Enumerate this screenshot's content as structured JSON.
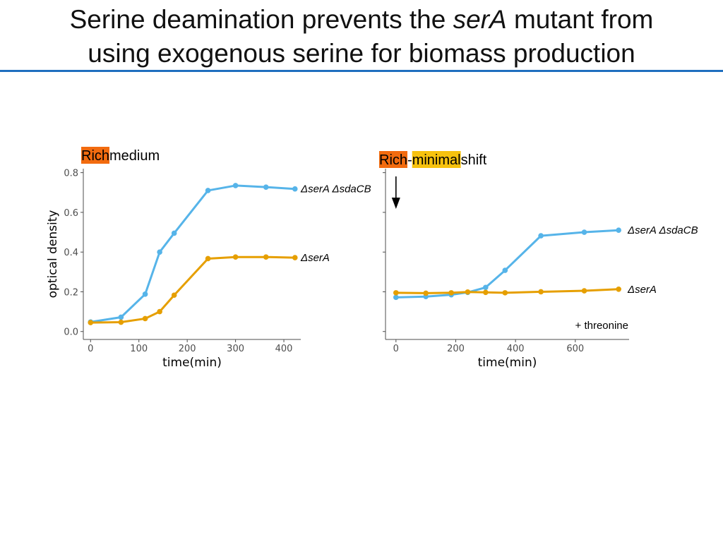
{
  "slide": {
    "title_line1_prefix": "Serine deamination prevents the ",
    "title_line1_italic": "serA",
    "title_line1_suffix": " mutant from",
    "title_line2": "using exogenous serine for biomass production",
    "rule_color": "#1f6fbf"
  },
  "highlight_colors": {
    "rich": "#f26b0f",
    "minimal": "#f7c20e"
  },
  "series_colors": {
    "serA_sdaCB": "#56b4e9",
    "serA": "#e69f00"
  },
  "chart_data": [
    {
      "type": "line",
      "title_parts": [
        {
          "text": "Rich",
          "highlight": "rich"
        },
        {
          "text": " medium",
          "highlight": null
        }
      ],
      "xlabel": "time(min)",
      "ylabel": "optical density",
      "xlim": [
        -15,
        435
      ],
      "ylim": [
        -0.04,
        0.82
      ],
      "xticks": [
        0,
        100,
        200,
        300,
        400
      ],
      "yticks": [
        0.0,
        0.2,
        0.4,
        0.6,
        0.8
      ],
      "ytick_labels": [
        "0.0",
        "0.2",
        "0.4",
        "0.6",
        "0.8"
      ],
      "grid": false,
      "series": [
        {
          "name": "ΔserA ΔsdaCB",
          "color_key": "serA_sdaCB",
          "x": [
            0,
            63,
            113,
            143,
            173,
            243,
            300,
            363,
            423
          ],
          "y": [
            0.048,
            0.072,
            0.188,
            0.4,
            0.495,
            0.71,
            0.735,
            0.727,
            0.718
          ]
        },
        {
          "name": "ΔserA",
          "color_key": "serA",
          "x": [
            0,
            63,
            113,
            143,
            173,
            243,
            300,
            363,
            423
          ],
          "y": [
            0.045,
            0.047,
            0.065,
            0.1,
            0.183,
            0.367,
            0.375,
            0.375,
            0.372
          ]
        }
      ]
    },
    {
      "type": "line",
      "title_parts": [
        {
          "text": "Rich",
          "highlight": "rich"
        },
        {
          "text": "-",
          "highlight": null
        },
        {
          "text": "minimal",
          "highlight": "minimal"
        },
        {
          "text": " shift",
          "highlight": null
        }
      ],
      "xlabel": "time(min)",
      "ylabel": "",
      "xlim": [
        -35,
        780
      ],
      "ylim": [
        -0.04,
        0.82
      ],
      "xticks": [
        0,
        200,
        400,
        600
      ],
      "yticks": [
        0.0,
        0.2,
        0.4,
        0.6,
        0.8
      ],
      "ytick_labels": [],
      "grid": false,
      "annotations": [
        "+ threonine"
      ],
      "series": [
        {
          "name": "ΔserA ΔsdaCB",
          "color_key": "serA_sdaCB",
          "x": [
            0,
            100,
            185,
            240,
            300,
            365,
            485,
            630,
            745
          ],
          "y": [
            0.172,
            0.176,
            0.185,
            0.197,
            0.222,
            0.308,
            0.482,
            0.5,
            0.51
          ]
        },
        {
          "name": "ΔserA",
          "color_key": "serA",
          "x": [
            0,
            100,
            185,
            240,
            300,
            365,
            485,
            630,
            745
          ],
          "y": [
            0.195,
            0.193,
            0.195,
            0.199,
            0.197,
            0.195,
            0.2,
            0.205,
            0.213
          ]
        }
      ]
    }
  ]
}
